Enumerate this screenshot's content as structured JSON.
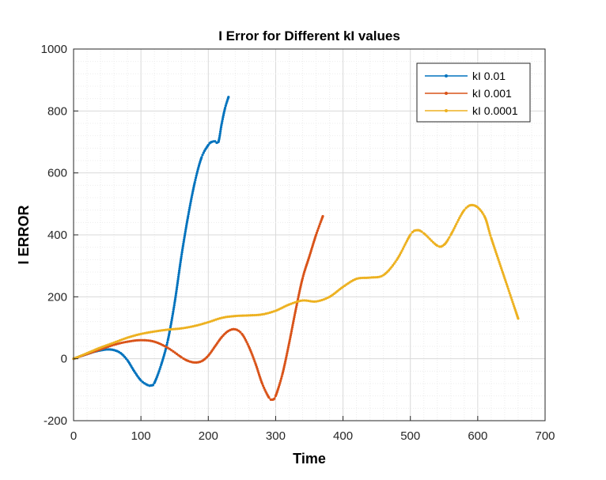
{
  "chart_data": {
    "type": "line",
    "title": "I Error for Different kI values",
    "xlabel": "Time",
    "ylabel": "I ERROR",
    "xlim": [
      0,
      700
    ],
    "ylim": [
      -200,
      1000
    ],
    "xticks": [
      0,
      100,
      200,
      300,
      400,
      500,
      600,
      700
    ],
    "yticks": [
      -200,
      0,
      200,
      400,
      600,
      800,
      1000
    ],
    "grid": "on, with minor gridlines",
    "legend_position": "top-right",
    "series": [
      {
        "name": "kI 0.01",
        "color": "#0072BD",
        "marker": "dot",
        "x": [
          0,
          10,
          20,
          30,
          40,
          50,
          60,
          70,
          80,
          90,
          100,
          110,
          115,
          120,
          130,
          140,
          150,
          160,
          170,
          180,
          190,
          200,
          205,
          210,
          215,
          220,
          225,
          230
        ],
        "y": [
          0,
          8,
          15,
          22,
          27,
          30,
          28,
          18,
          -5,
          -40,
          -70,
          -85,
          -86,
          -78,
          -20,
          60,
          180,
          330,
          460,
          570,
          650,
          690,
          700,
          702,
          700,
          760,
          810,
          845
        ]
      },
      {
        "name": "kI 0.001",
        "color": "#D95319",
        "marker": "dot",
        "x": [
          0,
          20,
          40,
          60,
          80,
          100,
          120,
          140,
          160,
          170,
          180,
          190,
          200,
          210,
          220,
          230,
          240,
          250,
          260,
          270,
          280,
          290,
          295,
          300,
          310,
          320,
          330,
          340,
          350,
          360,
          370
        ],
        "y": [
          0,
          15,
          30,
          45,
          55,
          60,
          55,
          35,
          5,
          -7,
          -12,
          -8,
          10,
          40,
          70,
          90,
          95,
          80,
          40,
          -15,
          -80,
          -125,
          -132,
          -120,
          -50,
          50,
          160,
          260,
          330,
          400,
          460
        ]
      },
      {
        "name": "kI 0.0001",
        "color": "#EDB120",
        "marker": "dot",
        "x": [
          0,
          20,
          40,
          60,
          80,
          100,
          120,
          140,
          160,
          180,
          200,
          220,
          240,
          260,
          280,
          300,
          320,
          340,
          360,
          380,
          400,
          420,
          440,
          460,
          480,
          500,
          510,
          520,
          540,
          550,
          560,
          580,
          595,
          610,
          620,
          640,
          660
        ],
        "y": [
          0,
          18,
          36,
          52,
          68,
          80,
          88,
          94,
          98,
          106,
          118,
          132,
          138,
          140,
          143,
          155,
          175,
          188,
          185,
          200,
          232,
          258,
          262,
          270,
          320,
          400,
          415,
          405,
          365,
          368,
          400,
          480,
          495,
          460,
          390,
          260,
          130
        ]
      }
    ]
  }
}
